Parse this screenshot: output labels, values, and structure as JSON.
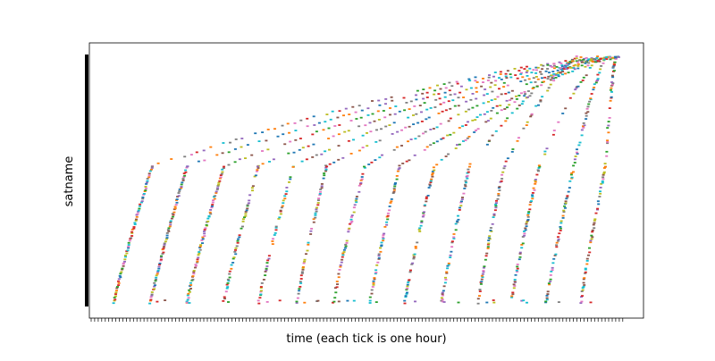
{
  "chart_data": {
    "type": "scatter",
    "xlabel": "time (each tick is one hour)",
    "ylabel": "satname",
    "x_unit": "hours",
    "x_ticks_count": 152,
    "grid": false,
    "legend": "none",
    "marker": "short horizontal dash",
    "colors": [
      "#1f77b4",
      "#ff7f0e",
      "#2ca02c",
      "#d62728",
      "#9467bd",
      "#8c564b",
      "#e377c2",
      "#7f7f7f",
      "#bcbd22",
      "#17becf"
    ],
    "series": [
      {
        "start_hour": 6.0,
        "knee_hour": 17.0,
        "end_hour": 147.0
      },
      {
        "start_hour": 16.5,
        "knee_hour": 27.0,
        "end_hour": 148.0
      },
      {
        "start_hour": 27.0,
        "knee_hour": 37.5,
        "end_hour": 148.5
      },
      {
        "start_hour": 37.5,
        "knee_hour": 47.5,
        "end_hour": 149.0
      },
      {
        "start_hour": 47.5,
        "knee_hour": 57.5,
        "end_hour": 149.5
      },
      {
        "start_hour": 58.5,
        "knee_hour": 67.0,
        "end_hour": 150.0
      },
      {
        "start_hour": 69.0,
        "knee_hour": 78.0,
        "end_hour": 150.5
      },
      {
        "start_hour": 79.5,
        "knee_hour": 88.0,
        "end_hour": 151.0
      },
      {
        "start_hour": 89.5,
        "knee_hour": 98.0,
        "end_hour": 145.0
      },
      {
        "start_hour": 100.0,
        "knee_hour": 108.0,
        "end_hour": 140.0
      },
      {
        "start_hour": 110.5,
        "knee_hour": 118.0,
        "end_hour": 139.0
      },
      {
        "start_hour": 120.0,
        "knee_hour": 128.0,
        "end_hour": 146.0
      },
      {
        "start_hour": 130.0,
        "knee_hour": 138.0,
        "end_hour": 147.5
      },
      {
        "start_hour": 140.0,
        "knee_hour": 147.0,
        "end_hour": 150.0
      }
    ]
  }
}
